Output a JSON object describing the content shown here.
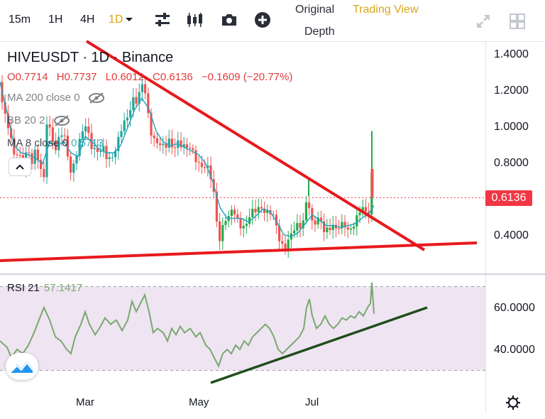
{
  "toolbar": {
    "timeframes": [
      {
        "label": "15m",
        "active": false
      },
      {
        "label": "1H",
        "active": false
      },
      {
        "label": "4H",
        "active": false
      },
      {
        "label": "1D",
        "active": true
      }
    ],
    "icons": [
      "indicators-sliders-icon",
      "candles-icon",
      "camera-icon",
      "add-plus-icon"
    ],
    "tabs": {
      "original": "Original",
      "tradingview": "Trading View",
      "depth": "Depth"
    },
    "right_icons": [
      "fullscreen-icon",
      "layout-grid-icon"
    ]
  },
  "legend": {
    "title": "HIVEUSDT · 1D · Binance",
    "ohlc": {
      "o": "O0.7714",
      "h": "H0.7737",
      "l": "L0.6012",
      "c": "C0.6136",
      "chg": "−0.1609 (−20.77%)"
    },
    "ma200": "MA 200 close 0",
    "bb": "BB 20 2",
    "ma8_label": "MA 8 close 0",
    "ma8_value": "0.5713"
  },
  "last_price": "0.6136",
  "colors": {
    "up": "#26a69a",
    "up_bright": "#22ab4a",
    "down": "#ef5350",
    "ma": "#1fa2c1",
    "trendline": "#e8191c",
    "rsi_line": "#78a86f",
    "rsi_trendline": "#1f4d1a",
    "rsi_band": "#efe4f2",
    "accent": "#e0a400"
  },
  "chart_data": [
    {
      "type": "candlestick",
      "title": "HIVEUSDT · 1D · Binance",
      "y_ticks": [
        "1.4000",
        "1.2000",
        "1.0000",
        "0.8000",
        "0.4000"
      ],
      "x_ticks": [
        "Mar",
        "May",
        "Jul"
      ],
      "ylim": [
        0.25,
        1.45
      ],
      "price_path": [
        [
          0,
          1.25
        ],
        [
          8,
          1.05
        ],
        [
          14,
          0.95
        ],
        [
          20,
          0.82
        ],
        [
          26,
          0.88
        ],
        [
          32,
          0.8
        ],
        [
          38,
          0.9
        ],
        [
          44,
          0.78
        ],
        [
          50,
          0.85
        ],
        [
          56,
          0.8
        ],
        [
          62,
          0.74
        ],
        [
          66,
          1.05
        ],
        [
          72,
          0.96
        ],
        [
          78,
          0.84
        ],
        [
          86,
          0.98
        ],
        [
          92,
          0.96
        ],
        [
          100,
          0.75
        ],
        [
          104,
          0.78
        ],
        [
          110,
          0.86
        ],
        [
          116,
          0.98
        ],
        [
          122,
          1.04
        ],
        [
          128,
          0.92
        ],
        [
          134,
          0.86
        ],
        [
          140,
          0.84
        ],
        [
          146,
          0.88
        ],
        [
          152,
          0.84
        ],
        [
          158,
          0.86
        ],
        [
          164,
          0.88
        ],
        [
          170,
          0.96
        ],
        [
          176,
          1.02
        ],
        [
          182,
          1.1
        ],
        [
          188,
          1.18
        ],
        [
          194,
          1.14
        ],
        [
          200,
          1.22
        ],
        [
          204,
          1.19
        ],
        [
          208,
          1.08
        ],
        [
          214,
          0.97
        ],
        [
          220,
          0.94
        ],
        [
          226,
          0.9
        ],
        [
          232,
          0.86
        ],
        [
          238,
          0.92
        ],
        [
          244,
          0.9
        ],
        [
          250,
          0.94
        ],
        [
          256,
          0.9
        ],
        [
          262,
          0.86
        ],
        [
          268,
          0.88
        ],
        [
          274,
          0.86
        ],
        [
          280,
          0.82
        ],
        [
          286,
          0.78
        ],
        [
          292,
          0.76
        ],
        [
          298,
          0.7
        ],
        [
          302,
          0.62
        ],
        [
          306,
          0.48
        ],
        [
          310,
          0.4
        ],
        [
          316,
          0.5
        ],
        [
          322,
          0.48
        ],
        [
          328,
          0.54
        ],
        [
          334,
          0.5
        ],
        [
          340,
          0.48
        ],
        [
          346,
          0.46
        ],
        [
          352,
          0.5
        ],
        [
          358,
          0.52
        ],
        [
          364,
          0.56
        ],
        [
          370,
          0.58
        ],
        [
          376,
          0.54
        ],
        [
          382,
          0.52
        ],
        [
          388,
          0.46
        ],
        [
          392,
          0.4
        ],
        [
          396,
          0.36
        ],
        [
          402,
          0.37
        ],
        [
          408,
          0.4
        ],
        [
          414,
          0.42
        ],
        [
          420,
          0.44
        ],
        [
          426,
          0.46
        ],
        [
          430,
          0.58
        ],
        [
          434,
          0.66
        ],
        [
          438,
          0.48
        ],
        [
          444,
          0.46
        ],
        [
          450,
          0.48
        ],
        [
          456,
          0.44
        ],
        [
          462,
          0.46
        ],
        [
          468,
          0.48
        ],
        [
          474,
          0.42
        ],
        [
          480,
          0.44
        ],
        [
          486,
          0.46
        ],
        [
          492,
          0.45
        ],
        [
          498,
          0.48
        ],
        [
          504,
          0.5
        ],
        [
          510,
          0.54
        ],
        [
          516,
          0.52
        ],
        [
          520,
          0.55
        ],
        [
          524,
          0.77
        ],
        [
          527,
          0.61
        ]
      ],
      "ma8_path": [
        [
          0,
          1.25
        ],
        [
          10,
          1.08
        ],
        [
          20,
          0.9
        ],
        [
          30,
          0.86
        ],
        [
          40,
          0.85
        ],
        [
          50,
          0.83
        ],
        [
          60,
          0.8
        ],
        [
          70,
          0.92
        ],
        [
          80,
          0.9
        ],
        [
          90,
          0.92
        ],
        [
          100,
          0.86
        ],
        [
          110,
          0.84
        ],
        [
          120,
          0.95
        ],
        [
          130,
          0.92
        ],
        [
          140,
          0.88
        ],
        [
          150,
          0.86
        ],
        [
          160,
          0.86
        ],
        [
          170,
          0.9
        ],
        [
          180,
          1.0
        ],
        [
          190,
          1.1
        ],
        [
          200,
          1.16
        ],
        [
          210,
          1.1
        ],
        [
          220,
          0.98
        ],
        [
          230,
          0.92
        ],
        [
          240,
          0.9
        ],
        [
          250,
          0.91
        ],
        [
          260,
          0.89
        ],
        [
          270,
          0.87
        ],
        [
          280,
          0.85
        ],
        [
          290,
          0.8
        ],
        [
          300,
          0.7
        ],
        [
          310,
          0.56
        ],
        [
          320,
          0.5
        ],
        [
          330,
          0.5
        ],
        [
          340,
          0.5
        ],
        [
          350,
          0.48
        ],
        [
          360,
          0.51
        ],
        [
          370,
          0.55
        ],
        [
          380,
          0.54
        ],
        [
          390,
          0.48
        ],
        [
          400,
          0.41
        ],
        [
          410,
          0.4
        ],
        [
          420,
          0.42
        ],
        [
          430,
          0.47
        ],
        [
          440,
          0.52
        ],
        [
          450,
          0.49
        ],
        [
          460,
          0.46
        ],
        [
          470,
          0.46
        ],
        [
          480,
          0.45
        ],
        [
          490,
          0.46
        ],
        [
          500,
          0.47
        ],
        [
          510,
          0.5
        ],
        [
          520,
          0.53
        ],
        [
          527,
          0.57
        ]
      ],
      "wick_highlights": [
        [
          435,
          0.62,
          0.72
        ],
        [
          524,
          0.6,
          0.98
        ]
      ]
    },
    {
      "type": "line",
      "title": "RSI 21",
      "value_label": "57.1417",
      "y_ticks": [
        "60.0000",
        "40.0000"
      ],
      "ylim": [
        25,
        75
      ],
      "band": [
        30,
        70
      ],
      "series": [
        {
          "values": [
            [
              0,
              44
            ],
            [
              10,
              41
            ],
            [
              16,
              36
            ],
            [
              24,
              40
            ],
            [
              32,
              38
            ],
            [
              40,
              42
            ],
            [
              48,
              48
            ],
            [
              56,
              55
            ],
            [
              62,
              60
            ],
            [
              70,
              54
            ],
            [
              78,
              46
            ],
            [
              86,
              44
            ],
            [
              94,
              40
            ],
            [
              100,
              38
            ],
            [
              106,
              46
            ],
            [
              114,
              52
            ],
            [
              120,
              58
            ],
            [
              126,
              52
            ],
            [
              134,
              47
            ],
            [
              140,
              50
            ],
            [
              148,
              55
            ],
            [
              156,
              52
            ],
            [
              164,
              54
            ],
            [
              172,
              49
            ],
            [
              180,
              54
            ],
            [
              186,
              63
            ],
            [
              192,
              58
            ],
            [
              198,
              62
            ],
            [
              204,
              66
            ],
            [
              210,
              58
            ],
            [
              216,
              48
            ],
            [
              222,
              50
            ],
            [
              230,
              48
            ],
            [
              236,
              44
            ],
            [
              242,
              50
            ],
            [
              248,
              47
            ],
            [
              254,
              51
            ],
            [
              260,
              48
            ],
            [
              268,
              50
            ],
            [
              276,
              46
            ],
            [
              282,
              48
            ],
            [
              290,
              42
            ],
            [
              296,
              40
            ],
            [
              302,
              36
            ],
            [
              308,
              32
            ],
            [
              314,
              38
            ],
            [
              320,
              40
            ],
            [
              326,
              38
            ],
            [
              332,
              42
            ],
            [
              338,
              40
            ],
            [
              344,
              44
            ],
            [
              350,
              42
            ],
            [
              356,
              46
            ],
            [
              362,
              48
            ],
            [
              368,
              50
            ],
            [
              374,
              52
            ],
            [
              380,
              50
            ],
            [
              386,
              46
            ],
            [
              392,
              40
            ],
            [
              398,
              38
            ],
            [
              404,
              40
            ],
            [
              410,
              42
            ],
            [
              416,
              44
            ],
            [
              422,
              46
            ],
            [
              428,
              50
            ],
            [
              432,
              60
            ],
            [
              436,
              64
            ],
            [
              440,
              56
            ],
            [
              446,
              50
            ],
            [
              452,
              52
            ],
            [
              458,
              56
            ],
            [
              464,
              52
            ],
            [
              470,
              50
            ],
            [
              476,
              52
            ],
            [
              482,
              55
            ],
            [
              488,
              54
            ],
            [
              494,
              56
            ],
            [
              500,
              55
            ],
            [
              506,
              58
            ],
            [
              512,
              56
            ],
            [
              518,
              60
            ],
            [
              522,
              62
            ],
            [
              524,
              72
            ],
            [
              527,
              57
            ]
          ]
        }
      ]
    }
  ]
}
